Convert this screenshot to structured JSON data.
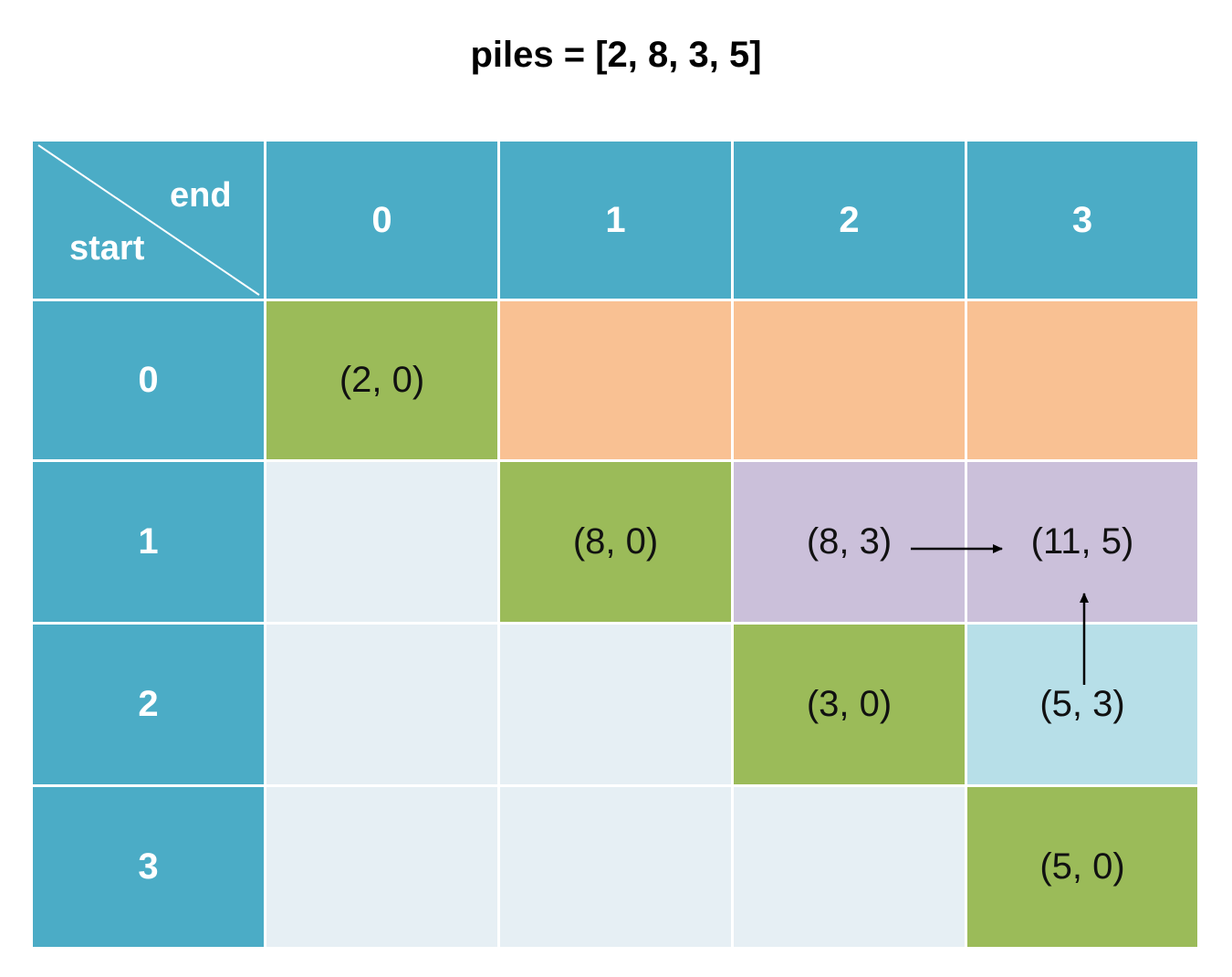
{
  "title": "piles = [2, 8, 3, 5]",
  "corner": {
    "column_axis_label": "end",
    "row_axis_label": "start"
  },
  "column_headers": [
    "0",
    "1",
    "2",
    "3"
  ],
  "rows": [
    {
      "header": "0",
      "cells": [
        {
          "value": "(2, 0)",
          "fill": "#9bbb59"
        },
        {
          "value": "",
          "fill": "#f9c193"
        },
        {
          "value": "",
          "fill": "#f9c193"
        },
        {
          "value": "",
          "fill": "#f9c193"
        }
      ]
    },
    {
      "header": "1",
      "cells": [
        {
          "value": "",
          "fill": "#e6eff4"
        },
        {
          "value": "(8, 0)",
          "fill": "#9bbb59"
        },
        {
          "value": "(8, 3)",
          "fill": "#cbc0da"
        },
        {
          "value": "(11, 5)",
          "fill": "#cbc0da"
        }
      ]
    },
    {
      "header": "2",
      "cells": [
        {
          "value": "",
          "fill": "#e6eff4"
        },
        {
          "value": "",
          "fill": "#e6eff4"
        },
        {
          "value": "(3, 0)",
          "fill": "#9bbb59"
        },
        {
          "value": "(5, 3)",
          "fill": "#b7dfe8"
        }
      ]
    },
    {
      "header": "3",
      "cells": [
        {
          "value": "",
          "fill": "#e6eff4"
        },
        {
          "value": "",
          "fill": "#e6eff4"
        },
        {
          "value": "",
          "fill": "#e6eff4"
        },
        {
          "value": "(5, 0)",
          "fill": "#9bbb59"
        }
      ]
    }
  ],
  "header_color": "#4bacc6",
  "arrows": [
    {
      "from": "(8, 3)",
      "to": "(11, 5)"
    },
    {
      "from": "(5, 3)",
      "to": "(11, 5)"
    }
  ]
}
